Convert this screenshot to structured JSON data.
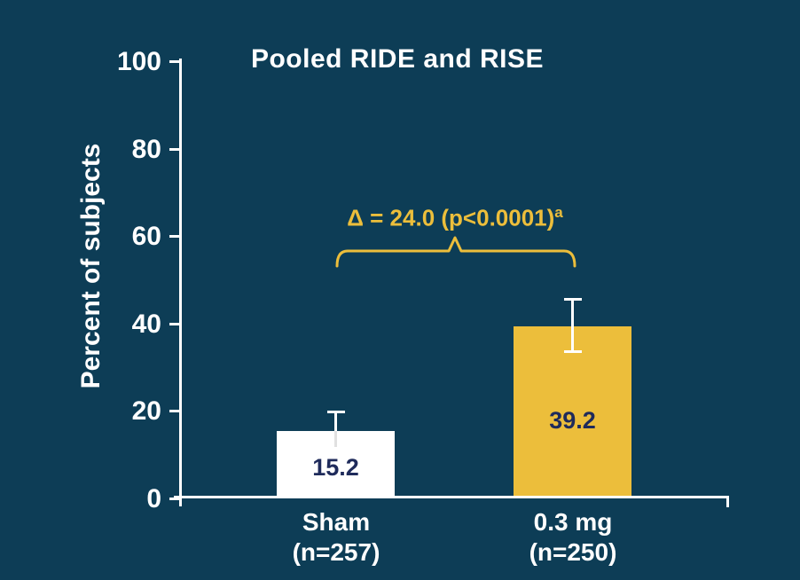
{
  "chart_data": {
    "type": "bar",
    "title": "Pooled RIDE and RISE",
    "ylabel": "Percent of subjects",
    "xlabel": "",
    "ylim": [
      0,
      100
    ],
    "yticks": [
      0,
      20,
      40,
      60,
      80,
      100
    ],
    "grid": false,
    "legend": "none",
    "categories": [
      "Sham (n=257)",
      "0.3 mg (n=250)"
    ],
    "bars": [
      {
        "label_line1": "Sham",
        "label_line2": "(n=257)",
        "value": 15.2,
        "value_label": "15.2",
        "error_upper": 4.5,
        "error_lower": 3.6,
        "error_cap_bottom": false,
        "color": "#ffffff"
      },
      {
        "label_line1": "0.3 mg",
        "label_line2": "(n=250)",
        "value": 39.2,
        "value_label": "39.2",
        "error_upper": 6.2,
        "error_lower": 6.0,
        "error_cap_bottom": true,
        "color": "#ecbe3b"
      }
    ],
    "annotation": {
      "text": "Δ = 24.0 (p<0.0001)",
      "superscript": "a",
      "color": "#ecbe3b"
    }
  },
  "colors": {
    "background": "#0d3d56",
    "axis": "#ffffff",
    "bar_sham": "#ffffff",
    "bar_03mg": "#ecbe3b",
    "value_text": "#1f2b5b",
    "annotation_gold": "#ecbe3b"
  }
}
